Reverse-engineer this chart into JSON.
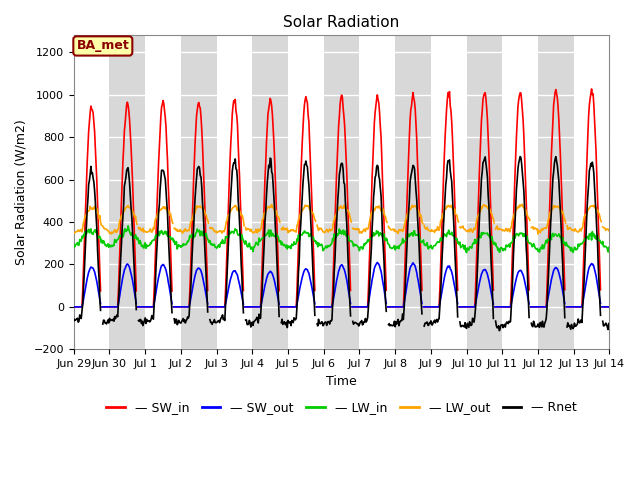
{
  "title": "Solar Radiation",
  "xlabel": "Time",
  "ylabel": "Solar Radiation (W/m2)",
  "ylim": [
    -200,
    1280
  ],
  "yticks": [
    -200,
    0,
    200,
    400,
    600,
    800,
    1000,
    1200
  ],
  "num_days": 15,
  "annotation_label": "BA_met",
  "annotation_bg": "#FFFFAA",
  "annotation_border": "#8B0000",
  "line_colors": {
    "SW_in": "#FF0000",
    "SW_out": "#0000FF",
    "LW_in": "#00CC00",
    "LW_out": "#FFA500",
    "Rnet": "#000000"
  },
  "line_width": 1.2,
  "background_color": "#FFFFFF",
  "plot_bg_color": "#D8D8D8",
  "band_color_light": "#F0F0F0",
  "band_color_dark": "#C8C8C8",
  "grid_color": "#FFFFFF",
  "legend_labels": [
    "SW_in",
    "SW_out",
    "LW_in",
    "LW_out",
    "Rnet"
  ]
}
